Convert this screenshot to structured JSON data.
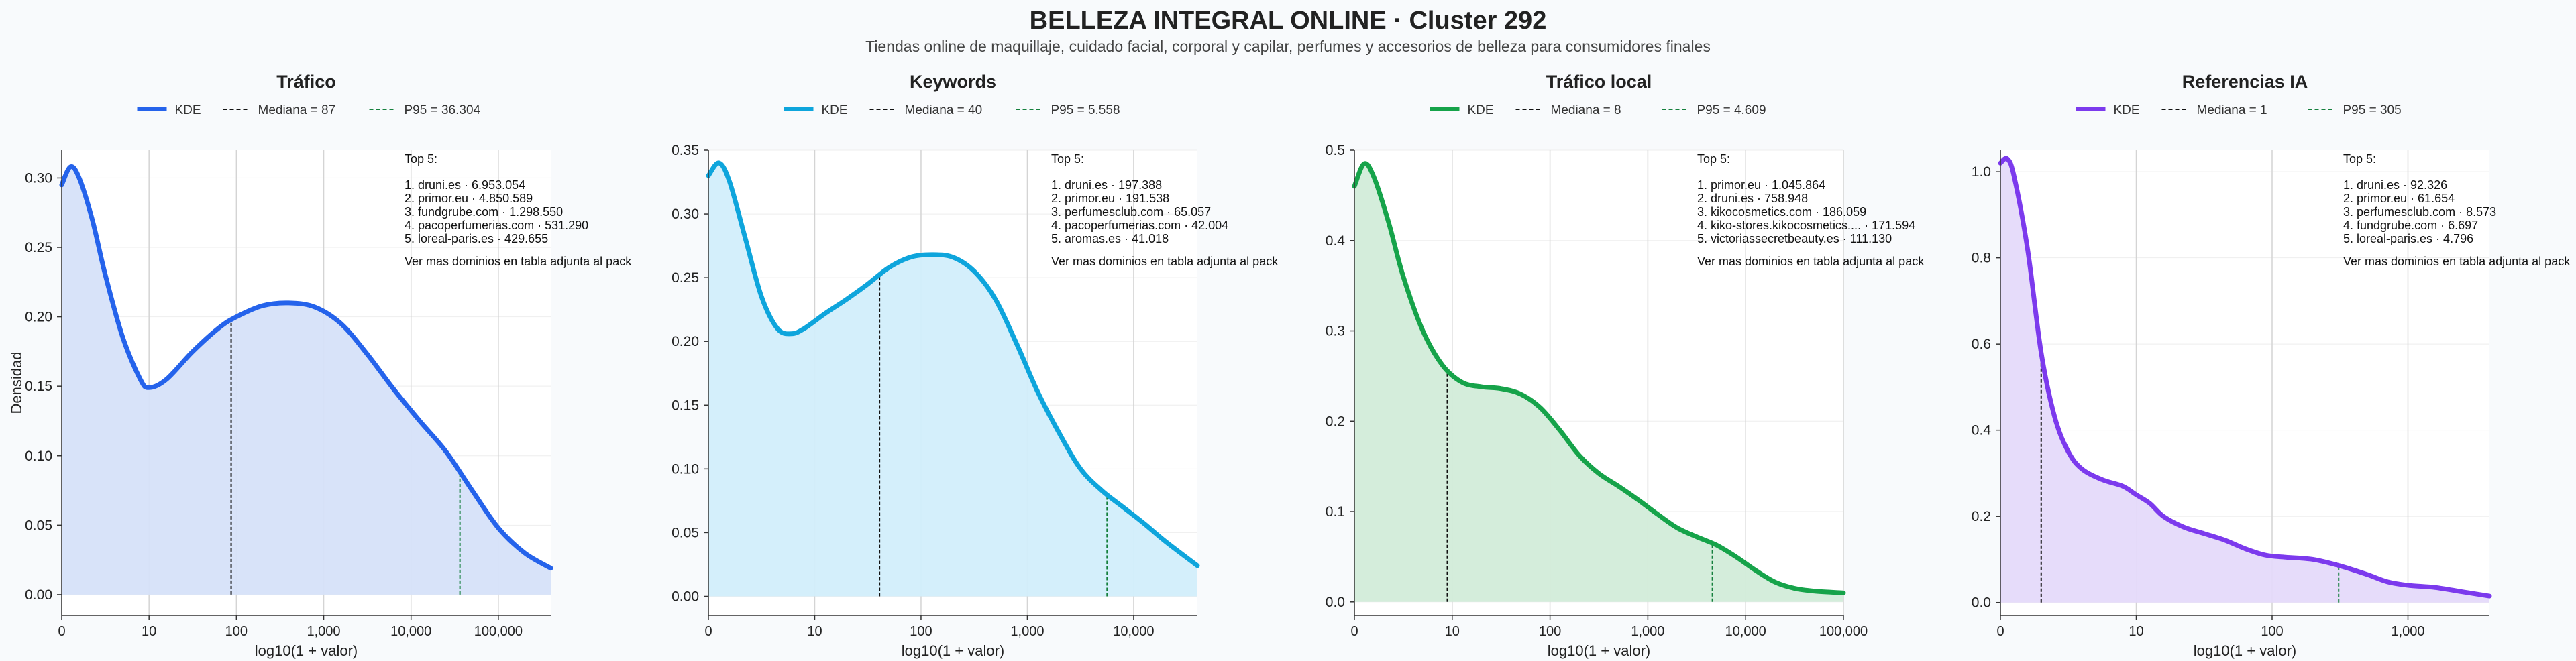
{
  "title": "BELLEZA INTEGRAL ONLINE · Cluster 292",
  "subtitle": "Tiendas online de maquillaje, cuidado facial, corporal y capilar, perfumes y accesorios de belleza para consumidores finales",
  "ylabel": "Densidad",
  "xlabel": "log10(1 + valor)",
  "legend_kde": "KDE",
  "top_header": "Top 5:",
  "top_footer": "Ver mas dominios en tabla adjunta al pack",
  "chart_data": [
    {
      "type": "area",
      "title": "Tráfico",
      "color": "#2563eb",
      "fill": "#d6e1f9",
      "median_label": "Mediana = 87",
      "p95_label": "P95 = 36.304",
      "median_x": 1.94,
      "p95_x": 4.56,
      "xlim": [
        0,
        5.6
      ],
      "ylim": [
        -0.015,
        0.32
      ],
      "xticks": [
        0,
        1,
        2,
        3,
        4,
        5
      ],
      "xtick_labels": [
        "0",
        "10",
        "100",
        "1,000",
        "10,000",
        "100,000"
      ],
      "yticks": [
        0,
        0.05,
        0.1,
        0.15,
        0.2,
        0.25,
        0.3
      ],
      "ytick_labels": [
        "0.00",
        "0.05",
        "0.10",
        "0.15",
        "0.20",
        "0.25",
        "0.30"
      ],
      "x": [
        0,
        0.1,
        0.2,
        0.35,
        0.5,
        0.7,
        0.9,
        1.0,
        1.2,
        1.5,
        1.8,
        2.0,
        2.3,
        2.6,
        2.9,
        3.2,
        3.5,
        3.8,
        4.1,
        4.4,
        4.7,
        5.0,
        5.3,
        5.6
      ],
      "y": [
        0.295,
        0.308,
        0.3,
        0.27,
        0.23,
        0.185,
        0.155,
        0.149,
        0.155,
        0.175,
        0.192,
        0.2,
        0.208,
        0.21,
        0.207,
        0.195,
        0.173,
        0.148,
        0.125,
        0.103,
        0.075,
        0.048,
        0.03,
        0.019
      ],
      "top5": [
        "1. druni.es · 6.953.054",
        "2. primor.eu · 4.850.589",
        "3. fundgrube.com · 1.298.550",
        "4. pacoperfumerias.com · 531.290",
        "5. loreal-paris.es · 429.655"
      ]
    },
    {
      "type": "area",
      "title": "Keywords",
      "color": "#0ea5dc",
      "fill": "#d2eefb",
      "median_label": "Mediana = 40",
      "p95_label": "P95 = 5.558",
      "median_x": 1.61,
      "p95_x": 3.75,
      "xlim": [
        0,
        4.6
      ],
      "ylim": [
        -0.015,
        0.35
      ],
      "xticks": [
        0,
        1,
        2,
        3,
        4
      ],
      "xtick_labels": [
        "0",
        "10",
        "100",
        "1,000",
        "10,000"
      ],
      "yticks": [
        0,
        0.05,
        0.1,
        0.15,
        0.2,
        0.25,
        0.3,
        0.35
      ],
      "ytick_labels": [
        "0.00",
        "0.05",
        "0.10",
        "0.15",
        "0.20",
        "0.25",
        "0.30",
        "0.35"
      ],
      "x": [
        0,
        0.1,
        0.2,
        0.35,
        0.5,
        0.65,
        0.78,
        0.9,
        1.1,
        1.3,
        1.5,
        1.7,
        1.9,
        2.1,
        2.3,
        2.5,
        2.7,
        2.9,
        3.1,
        3.3,
        3.5,
        3.7,
        3.9,
        4.1,
        4.3,
        4.6
      ],
      "y": [
        0.33,
        0.34,
        0.325,
        0.28,
        0.235,
        0.21,
        0.206,
        0.21,
        0.222,
        0.233,
        0.245,
        0.258,
        0.266,
        0.268,
        0.266,
        0.255,
        0.233,
        0.198,
        0.16,
        0.128,
        0.1,
        0.083,
        0.07,
        0.057,
        0.043,
        0.024
      ],
      "top5": [
        "1. druni.es · 197.388",
        "2. primor.eu · 191.538",
        "3. perfumesclub.com · 65.057",
        "4. pacoperfumerias.com · 42.004",
        "5. aromas.es · 41.018"
      ]
    },
    {
      "type": "area",
      "title": "Tráfico local",
      "color": "#16a34a",
      "fill": "#d2ecd9",
      "median_label": "Mediana = 8",
      "p95_label": "P95 = 4.609",
      "median_x": 0.95,
      "p95_x": 3.66,
      "xlim": [
        0,
        5.0
      ],
      "ylim": [
        -0.015,
        0.5
      ],
      "xticks": [
        0,
        1,
        2,
        3,
        4,
        5
      ],
      "xtick_labels": [
        "0",
        "10",
        "100",
        "1,000",
        "10,000",
        "100,000"
      ],
      "yticks": [
        0,
        0.1,
        0.2,
        0.3,
        0.4,
        0.5
      ],
      "ytick_labels": [
        "0.0",
        "0.1",
        "0.2",
        "0.3",
        "0.4",
        "0.5"
      ],
      "x": [
        0,
        0.1,
        0.2,
        0.35,
        0.5,
        0.7,
        0.9,
        1.1,
        1.3,
        1.5,
        1.7,
        1.9,
        2.1,
        2.3,
        2.5,
        2.7,
        2.9,
        3.1,
        3.3,
        3.5,
        3.7,
        3.9,
        4.1,
        4.3,
        4.5,
        4.7,
        5.0
      ],
      "y": [
        0.46,
        0.485,
        0.47,
        0.42,
        0.36,
        0.3,
        0.262,
        0.243,
        0.238,
        0.236,
        0.23,
        0.215,
        0.19,
        0.162,
        0.142,
        0.128,
        0.113,
        0.097,
        0.082,
        0.072,
        0.063,
        0.05,
        0.035,
        0.022,
        0.015,
        0.012,
        0.01
      ],
      "top5": [
        "1. primor.eu · 1.045.864",
        "2. druni.es · 758.948",
        "3. kikocosmetics.com · 186.059",
        "4. kiko-stores.kikocosmetics.... · 171.594",
        "5. victoriassecretbeauty.es · 111.130"
      ]
    },
    {
      "type": "area",
      "title": "Referencias IA",
      "color": "#7c3aed",
      "fill": "#e5dafa",
      "median_label": "Mediana = 1",
      "p95_label": "P95 = 305",
      "median_x": 0.3,
      "p95_x": 2.49,
      "xlim": [
        0,
        3.6
      ],
      "ylim": [
        -0.03,
        1.05
      ],
      "xticks": [
        0,
        1,
        2,
        3
      ],
      "xtick_labels": [
        "0",
        "10",
        "100",
        "1,000"
      ],
      "yticks": [
        0,
        0.2,
        0.4,
        0.6,
        0.8,
        1.0
      ],
      "ytick_labels": [
        "0.0",
        "0.2",
        "0.4",
        "0.6",
        "0.8",
        "1.0"
      ],
      "x": [
        0,
        0.05,
        0.1,
        0.2,
        0.3,
        0.4,
        0.5,
        0.6,
        0.75,
        0.9,
        1.0,
        1.1,
        1.2,
        1.35,
        1.5,
        1.65,
        1.8,
        1.95,
        2.1,
        2.3,
        2.5,
        2.7,
        2.85,
        3.0,
        3.2,
        3.4,
        3.6
      ],
      "y": [
        1.02,
        1.03,
        0.99,
        0.82,
        0.58,
        0.43,
        0.35,
        0.31,
        0.285,
        0.27,
        0.25,
        0.23,
        0.2,
        0.175,
        0.16,
        0.145,
        0.125,
        0.11,
        0.105,
        0.1,
        0.085,
        0.065,
        0.048,
        0.04,
        0.035,
        0.025,
        0.015
      ],
      "top5": [
        "1. druni.es · 92.326",
        "2. primor.eu · 61.654",
        "3. perfumesclub.com · 8.573",
        "4. fundgrube.com · 6.697",
        "5. loreal-paris.es · 4.796"
      ]
    }
  ]
}
